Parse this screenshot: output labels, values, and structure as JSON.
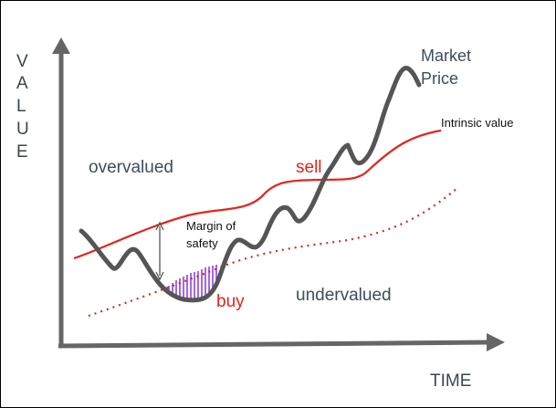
{
  "y_axis": {
    "letters": [
      "V",
      "A",
      "L",
      "U",
      "E"
    ]
  },
  "x_axis": {
    "label": "TIME"
  },
  "labels": {
    "overvalued": "overvalued",
    "undervalued": "undervalued",
    "sell": "sell",
    "buy": "buy",
    "margin_line1": "Margin of",
    "margin_line2": "safety",
    "market_line1": "Market",
    "market_line2": "Price",
    "intrinsic": "Intrinsic value"
  },
  "colors": {
    "axis": "#666666",
    "intrinsic_value": "#e5241b",
    "market_price": "#555555",
    "lower_band": "#e5241b",
    "margin_hatch": "#8a44e0",
    "sell_buy_text": "#e5241b"
  }
}
